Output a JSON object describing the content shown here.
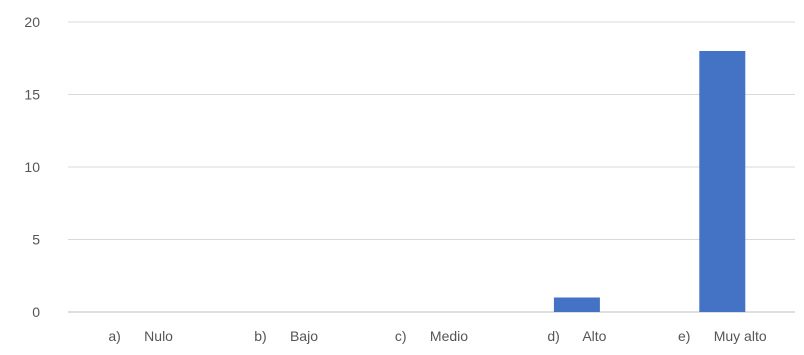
{
  "chart_data": {
    "type": "bar",
    "categories": [
      "a)      Nulo",
      "b)      Bajo",
      "c)      Medio",
      "d)      Alto",
      "e)      Muy alto"
    ],
    "values": [
      0,
      0,
      0,
      1,
      18
    ],
    "y_ticks": [
      "0",
      "5",
      "10",
      "15",
      "20"
    ],
    "ylim": [
      0,
      20
    ],
    "grid": true,
    "bar_color": "#4472c4",
    "title": "",
    "xlabel": "",
    "ylabel": ""
  }
}
